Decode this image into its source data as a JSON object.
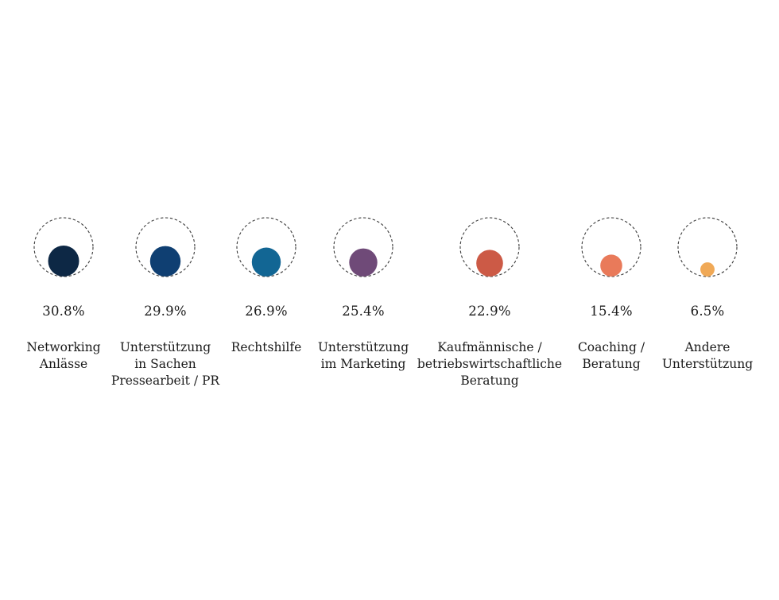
{
  "chart_data": {
    "type": "bubble",
    "title": "",
    "max_value": 30.8,
    "outline_style": "dashed",
    "outline_color": "#3a3a3a",
    "items": [
      {
        "label_lines": [
          "Networking",
          "Anlässe"
        ],
        "value": 30.8,
        "value_label": "30.8%",
        "color": "#0d2845"
      },
      {
        "label_lines": [
          "Unterstützung",
          "in Sachen",
          "Pressearbeit / PR"
        ],
        "value": 29.9,
        "value_label": "29.9%",
        "color": "#0f3f72"
      },
      {
        "label_lines": [
          "Rechtshilfe"
        ],
        "value": 26.9,
        "value_label": "26.9%",
        "color": "#126694"
      },
      {
        "label_lines": [
          "Unterstützung",
          "im Marketing"
        ],
        "value": 25.4,
        "value_label": "25.4%",
        "color": "#6f4a78"
      },
      {
        "label_lines": [
          "Kaufmännische /",
          "betriebswirtschaftliche",
          "Beratung"
        ],
        "value": 22.9,
        "value_label": "22.9%",
        "color": "#cc5a46"
      },
      {
        "label_lines": [
          "Coaching /",
          "Beratung"
        ],
        "value": 15.4,
        "value_label": "15.4%",
        "color": "#e97a5a"
      },
      {
        "label_lines": [
          "Andere",
          "Unterstützung"
        ],
        "value": 6.5,
        "value_label": "6.5%",
        "color": "#f0a957"
      }
    ]
  }
}
